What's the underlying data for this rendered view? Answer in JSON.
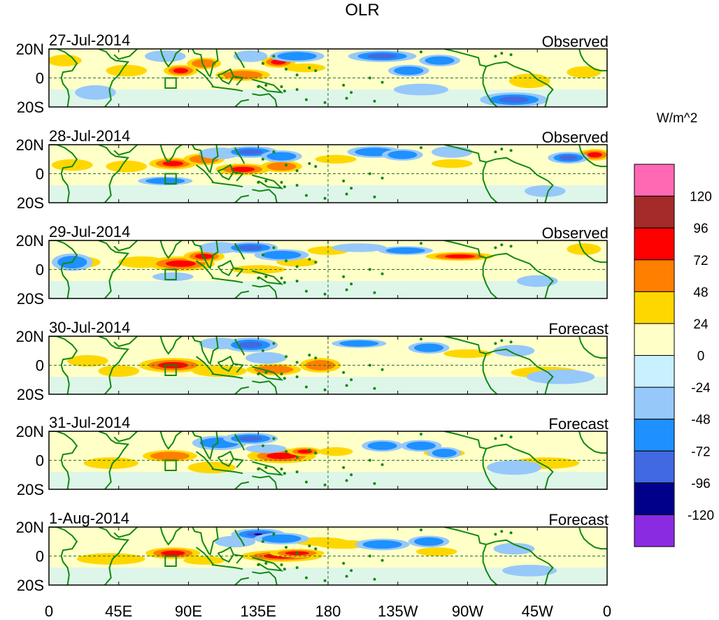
{
  "chart_data": {
    "type": "heatmap",
    "title": "OLR",
    "units": "W/m^2",
    "x_ticks": [
      "0",
      "45E",
      "90E",
      "135E",
      "180",
      "135W",
      "90W",
      "45W",
      "0"
    ],
    "x_range_deg": [
      0,
      360
    ],
    "y_ticks": [
      "20N",
      "0",
      "20S"
    ],
    "y_range_deg": [
      -20,
      20
    ],
    "panels": [
      {
        "date": "27-Jul-2014",
        "kind": "Observed"
      },
      {
        "date": "28-Jul-2014",
        "kind": "Observed"
      },
      {
        "date": "29-Jul-2014",
        "kind": "Observed"
      },
      {
        "date": "30-Jul-2014",
        "kind": "Forecast"
      },
      {
        "date": "31-Jul-2014",
        "kind": "Forecast"
      },
      {
        "date": "1-Aug-2014",
        "kind": "Forecast"
      }
    ],
    "colorbar": {
      "labels": [
        "120",
        "96",
        "72",
        "48",
        "24",
        "0",
        "-24",
        "-48",
        "-72",
        "-96",
        "-120"
      ],
      "colors": [
        "#ff69b4",
        "#a52a2a",
        "#ff0000",
        "#ff7f00",
        "#ffd700",
        "#ffffc8",
        "#c8f0ff",
        "#96c8fa",
        "#1e90ff",
        "#4169e1",
        "#00008b",
        "#8a2be2"
      ]
    },
    "features": {
      "box_lon": [
        75,
        82
      ],
      "box_lat": [
        -7,
        0
      ],
      "positive_anomalies": [
        [
          [
            10,
            12,
            5,
            4,
            1
          ],
          [
            50,
            5,
            6,
            4,
            1
          ],
          [
            85,
            5,
            5,
            4,
            2
          ],
          [
            100,
            10,
            5,
            4,
            1.5
          ],
          [
            125,
            2,
            8,
            4,
            1.5
          ],
          [
            148,
            11,
            5,
            4,
            2
          ],
          [
            165,
            7,
            6,
            3,
            1
          ],
          [
            310,
            -2,
            6,
            5,
            1
          ],
          [
            345,
            4,
            5,
            4,
            1
          ]
        ],
        [
          [
            15,
            6,
            6,
            4,
            1
          ],
          [
            50,
            5,
            6,
            4,
            1
          ],
          [
            80,
            7,
            7,
            4,
            2
          ],
          [
            100,
            10,
            6,
            4,
            1.5
          ],
          [
            125,
            3,
            8,
            4,
            2
          ],
          [
            150,
            5,
            6,
            4,
            1.5
          ],
          [
            185,
            10,
            6,
            3,
            1
          ],
          [
            260,
            7,
            6,
            3,
            1
          ],
          [
            352,
            13,
            5,
            4,
            2
          ]
        ],
        [
          [
            20,
            5,
            6,
            4,
            1
          ],
          [
            60,
            5,
            7,
            4,
            1
          ],
          [
            85,
            4,
            10,
            5,
            2
          ],
          [
            100,
            9,
            6,
            4,
            3
          ],
          [
            135,
            0,
            8,
            3,
            1
          ],
          [
            160,
            5,
            6,
            3,
            1
          ],
          [
            180,
            13,
            6,
            3,
            1
          ],
          [
            265,
            9,
            10,
            3,
            2
          ],
          [
            345,
            14,
            5,
            4,
            1
          ]
        ],
        [
          [
            25,
            3,
            6,
            4,
            1
          ],
          [
            45,
            -4,
            6,
            4,
            1
          ],
          [
            80,
            0,
            10,
            5,
            2
          ],
          [
            110,
            -4,
            8,
            4,
            1
          ],
          [
            145,
            -3,
            8,
            4,
            1.5
          ],
          [
            175,
            0,
            6,
            5,
            1.5
          ],
          [
            270,
            8,
            7,
            3,
            1
          ],
          [
            320,
            -5,
            10,
            4,
            0.7
          ]
        ],
        [
          [
            40,
            -2,
            8,
            4,
            1
          ],
          [
            78,
            3,
            8,
            4,
            1.5
          ],
          [
            105,
            -5,
            7,
            4,
            1
          ],
          [
            150,
            3,
            10,
            5,
            2
          ],
          [
            165,
            6,
            5,
            3,
            2
          ],
          [
            185,
            6,
            5,
            3,
            1
          ],
          [
            255,
            5,
            6,
            3,
            1
          ],
          [
            320,
            -2,
            10,
            4,
            0.7
          ]
        ],
        [
          [
            40,
            -2,
            10,
            4,
            1
          ],
          [
            80,
            2,
            8,
            4,
            2
          ],
          [
            100,
            -3,
            6,
            3,
            1
          ],
          [
            150,
            0,
            12,
            4,
            2
          ],
          [
            160,
            2,
            8,
            3,
            2.5
          ],
          [
            175,
            10,
            8,
            3,
            1
          ],
          [
            190,
            8,
            8,
            3,
            1
          ],
          [
            250,
            3,
            6,
            3,
            1
          ]
        ]
      ],
      "negative_anomalies": [
        [
          [
            30,
            -10,
            6,
            5,
            1
          ],
          [
            75,
            15,
            6,
            4,
            1
          ],
          [
            130,
            15,
            5,
            4,
            1
          ],
          [
            160,
            15,
            8,
            4,
            1.5
          ],
          [
            215,
            15,
            10,
            4,
            2.5
          ],
          [
            232,
            5,
            6,
            4,
            1.5
          ],
          [
            252,
            12,
            6,
            4,
            1.5
          ],
          [
            300,
            -15,
            10,
            5,
            2
          ],
          [
            240,
            -8,
            8,
            4,
            1
          ]
        ],
        [
          [
            75,
            -5,
            8,
            3,
            1.5
          ],
          [
            110,
            14,
            6,
            4,
            1
          ],
          [
            130,
            15,
            8,
            4,
            2
          ],
          [
            150,
            12,
            6,
            4,
            1.5
          ],
          [
            210,
            15,
            8,
            4,
            1.5
          ],
          [
            228,
            13,
            6,
            4,
            1.5
          ],
          [
            260,
            15,
            6,
            4,
            1
          ],
          [
            335,
            11,
            6,
            4,
            2.5
          ],
          [
            320,
            -12,
            6,
            4,
            1
          ]
        ],
        [
          [
            15,
            5,
            6,
            6,
            1.5
          ],
          [
            110,
            15,
            6,
            4,
            1
          ],
          [
            130,
            15,
            8,
            4,
            2
          ],
          [
            150,
            10,
            8,
            4,
            1.5
          ],
          [
            200,
            15,
            8,
            3,
            1
          ],
          [
            230,
            13,
            8,
            3,
            1.5
          ],
          [
            315,
            -8,
            6,
            4,
            1
          ],
          [
            80,
            -5,
            6,
            3,
            1
          ]
        ],
        [
          [
            110,
            15,
            6,
            4,
            1
          ],
          [
            130,
            14,
            8,
            5,
            2
          ],
          [
            140,
            5,
            6,
            4,
            1
          ],
          [
            200,
            15,
            8,
            3,
            1.5
          ],
          [
            245,
            12,
            6,
            4,
            1.5
          ],
          [
            300,
            10,
            6,
            4,
            1
          ],
          [
            330,
            -8,
            10,
            5,
            0.7
          ]
        ],
        [
          [
            110,
            12,
            8,
            5,
            1.5
          ],
          [
            130,
            15,
            8,
            4,
            2
          ],
          [
            140,
            8,
            6,
            3,
            1
          ],
          [
            215,
            10,
            6,
            4,
            1.5
          ],
          [
            240,
            10,
            6,
            4,
            1.5
          ],
          [
            255,
            5,
            5,
            4,
            1.5
          ],
          [
            300,
            -5,
            8,
            5,
            1
          ]
        ],
        [
          [
            120,
            10,
            6,
            4,
            1
          ],
          [
            135,
            15,
            8,
            4,
            3
          ],
          [
            150,
            12,
            8,
            4,
            1.5
          ],
          [
            215,
            8,
            8,
            4,
            1.5
          ],
          [
            245,
            10,
            6,
            4,
            1.5
          ],
          [
            300,
            5,
            6,
            4,
            1
          ],
          [
            310,
            -10,
            8,
            4,
            0.7
          ]
        ]
      ]
    }
  }
}
